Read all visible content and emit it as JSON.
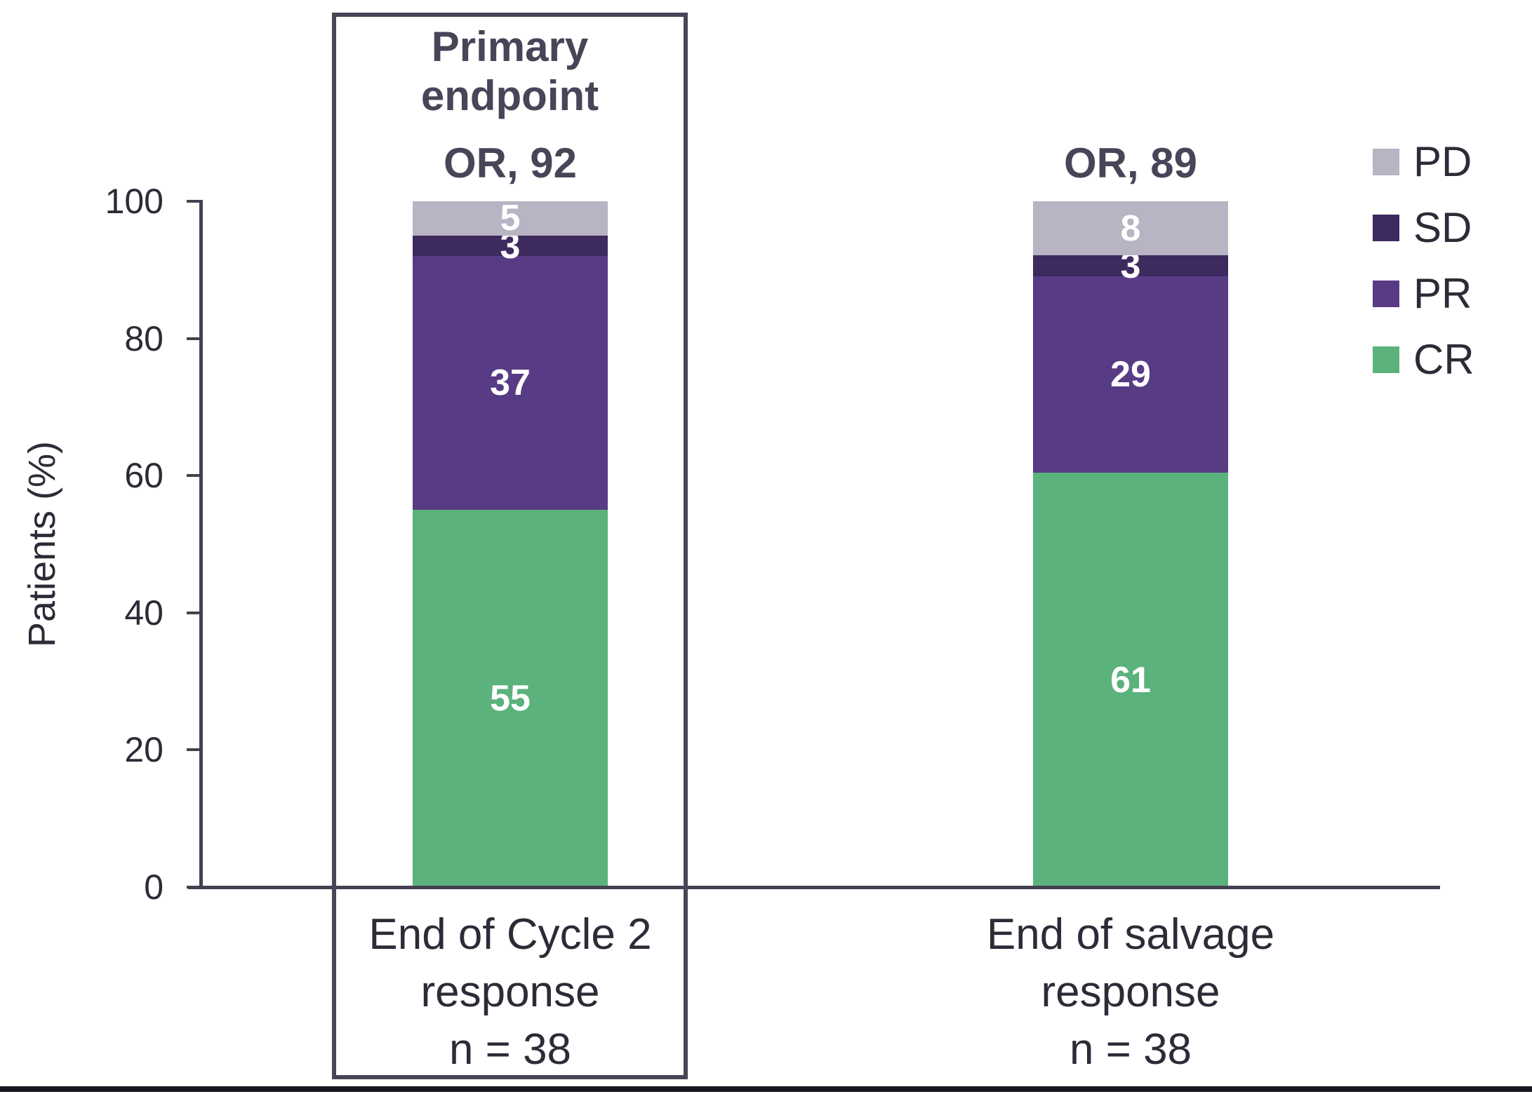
{
  "colors": {
    "background": "#ffffff",
    "axis_line": "#454051",
    "box_border": "#4a4556",
    "header_text": "#4a4458",
    "body_text": "#2d2b37",
    "segment_value_text": "#ffffff",
    "bottom_rule": "#16141c",
    "cr_green": "#5bb27c",
    "pr_purple": "#573b84",
    "sd_dark_purple": "#3d2a5e",
    "pd_gray": "#b8b4c3"
  },
  "chart_data": {
    "type": "bar",
    "stacked": true,
    "title": "",
    "xlabel": "",
    "ylabel": "Patients (%)",
    "ylim": [
      0,
      100
    ],
    "yticks": [
      0,
      20,
      40,
      60,
      80,
      100
    ],
    "grid": false,
    "legend_position": "top-right",
    "categories": [
      "End of Cycle 2 response n = 38",
      "End of salvage response n = 38"
    ],
    "series": [
      {
        "name": "CR",
        "values": [
          55,
          61
        ],
        "color": "#5bb27c"
      },
      {
        "name": "PR",
        "values": [
          37,
          29
        ],
        "color": "#573b84"
      },
      {
        "name": "SD",
        "values": [
          3,
          3
        ],
        "color": "#3d2a5e"
      },
      {
        "name": "PD",
        "values": [
          5,
          8
        ],
        "color": "#b8b4c3"
      }
    ],
    "legend_items": [
      {
        "label": "PD",
        "color": "#b8b4c3"
      },
      {
        "label": "SD",
        "color": "#3d2a5e"
      },
      {
        "label": "PR",
        "color": "#573b84"
      },
      {
        "label": "CR",
        "color": "#5bb27c"
      }
    ],
    "groups": [
      {
        "label_lines": [
          "End of Cycle 2",
          "response",
          "n = 38"
        ],
        "or_label": "OR, 92",
        "boxed": true,
        "box_title_lines": [
          "Primary",
          "endpoint"
        ],
        "segments": [
          {
            "name": "CR",
            "value": 55
          },
          {
            "name": "PR",
            "value": 37
          },
          {
            "name": "SD",
            "value": 3
          },
          {
            "name": "PD",
            "value": 5
          }
        ]
      },
      {
        "label_lines": [
          "End of salvage",
          "response",
          "n = 38"
        ],
        "or_label": "OR, 89",
        "boxed": false,
        "segments": [
          {
            "name": "CR",
            "value": 61
          },
          {
            "name": "PR",
            "value": 29
          },
          {
            "name": "SD",
            "value": 3
          },
          {
            "name": "PD",
            "value": 8
          }
        ]
      }
    ]
  }
}
